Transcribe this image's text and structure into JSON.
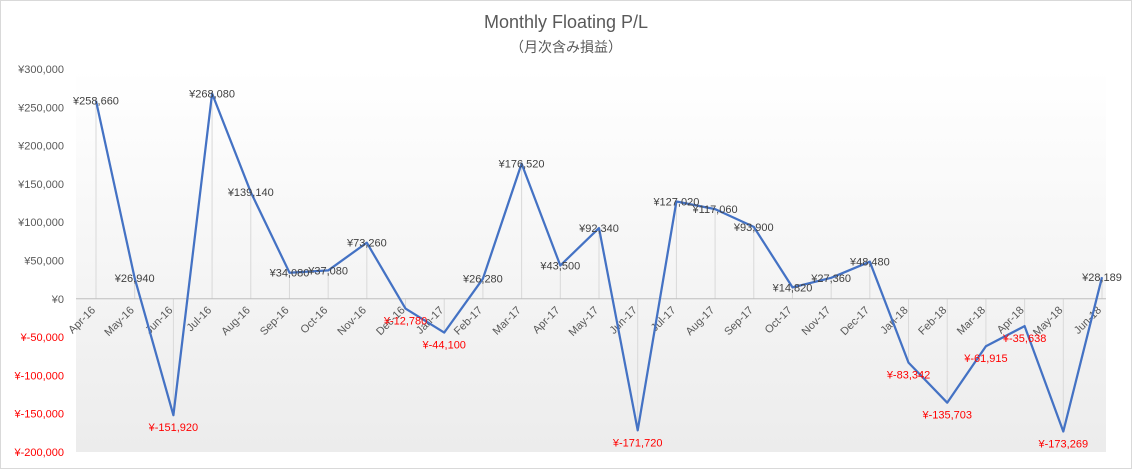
{
  "chart_data": {
    "type": "line",
    "title": "Monthly Floating P/L",
    "subtitle": "（月次含み損益）",
    "categories": [
      "Apr-16",
      "May-16",
      "Jun-16",
      "Jul-16",
      "Aug-16",
      "Sep-16",
      "Oct-16",
      "Nov-16",
      "Dec-16",
      "Jan-17",
      "Feb-17",
      "Mar-17",
      "Apr-17",
      "May-17",
      "Jun-17",
      "Jul-17",
      "Aug-17",
      "Sep-17",
      "Oct-17",
      "Nov-17",
      "Dec-17",
      "Jan-18",
      "Feb-18",
      "Mar-18",
      "Apr-18",
      "May-18",
      "Jun-18"
    ],
    "values": [
      258660,
      26940,
      -151920,
      268080,
      139140,
      34080,
      37080,
      73260,
      -12780,
      -44100,
      26280,
      176520,
      43500,
      92340,
      -171720,
      127020,
      117060,
      93900,
      14820,
      27360,
      48480,
      -83342,
      -135703,
      -61915,
      -35638,
      -173269,
      28189
    ],
    "data_labels": [
      "¥258,660",
      "¥26,940",
      "¥-151,920",
      "¥268,080",
      "¥139,140",
      "¥34,080",
      "¥37,080",
      "¥73,260",
      "¥-12,780",
      "¥-44,100",
      "¥26,280",
      "¥176,520",
      "¥43,500",
      "¥92,340",
      "¥-171,720",
      "¥127,020",
      "¥117,060",
      "¥93,900",
      "¥14,820",
      "¥27,360",
      "¥48,480",
      "¥-83,342",
      "¥-135,703",
      "¥-61,915",
      "¥-35,638",
      "¥-173,269",
      "¥28,189"
    ],
    "ylim": [
      -200000,
      300000
    ],
    "y_ticks": [
      300000,
      250000,
      200000,
      150000,
      100000,
      50000,
      0,
      -50000,
      -100000,
      -150000,
      -200000
    ],
    "y_tick_labels": [
      "¥300,000",
      "¥250,000",
      "¥200,000",
      "¥150,000",
      "¥100,000",
      "¥50,000",
      "¥0",
      "¥-50,000",
      "¥-100,000",
      "¥-150,000",
      "¥-200,000"
    ],
    "xlabel": "",
    "ylabel": "",
    "grid": false,
    "legend": "none",
    "colors": {
      "line": "#4472c4",
      "positive_text": "#404040",
      "negative_text": "#ff0000",
      "drop_line": "#d9d9d9",
      "axis_text": "#595959"
    }
  }
}
